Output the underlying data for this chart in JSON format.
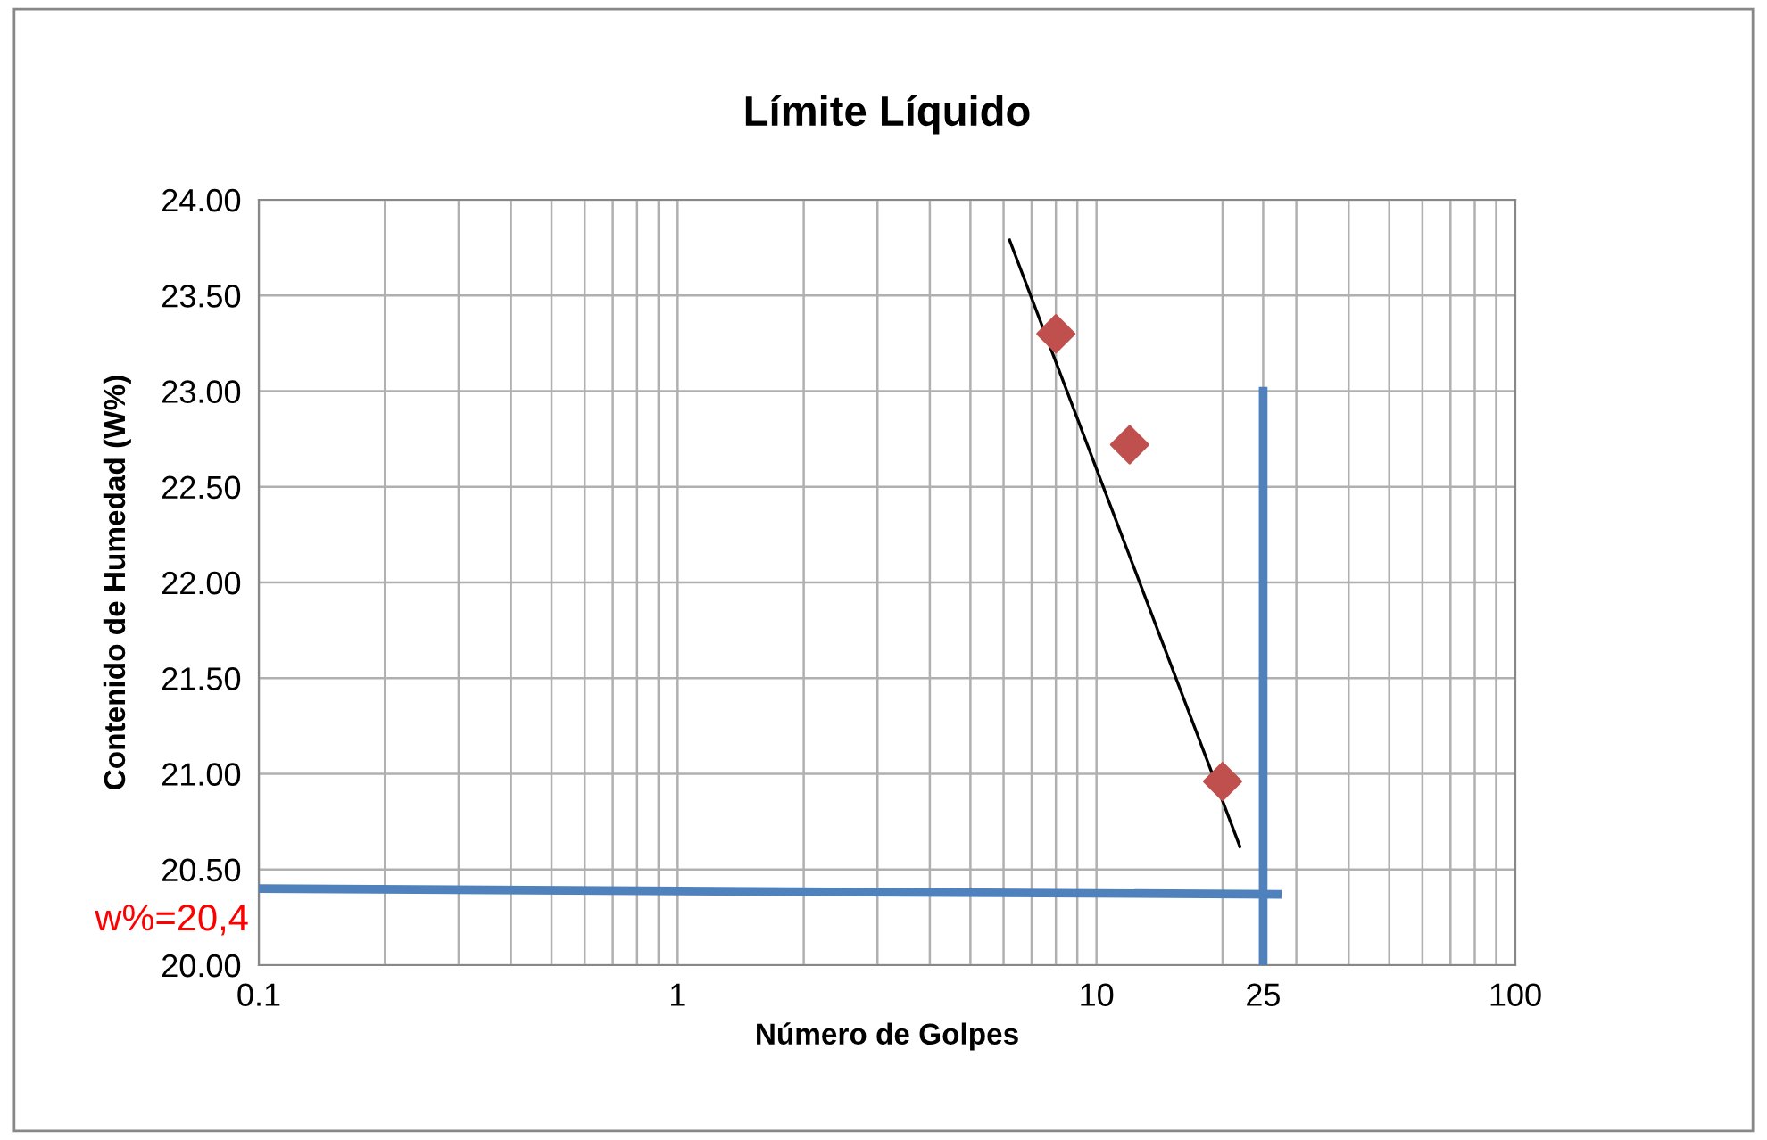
{
  "chart_data": {
    "type": "scatter",
    "title": "Límite Líquido",
    "xlabel": "Número de Golpes",
    "ylabel": "Contenido de Humedad (W%)",
    "log": "x",
    "xlim": [
      0.1,
      100
    ],
    "xticks": [
      0.1,
      1,
      10,
      25,
      100
    ],
    "ylim": [
      20,
      24
    ],
    "yticks": [
      {
        "value": 20,
        "label": "20.00"
      },
      {
        "value": 20.5,
        "label": "20.50"
      },
      {
        "value": 21,
        "label": "21.00"
      },
      {
        "value": 21.5,
        "label": "21.50"
      },
      {
        "value": 22,
        "label": "22.00"
      },
      {
        "value": 22.5,
        "label": "22.50"
      },
      {
        "value": 23,
        "label": "23.00"
      },
      {
        "value": 23.5,
        "label": "23.50"
      },
      {
        "value": 24,
        "label": "24.00"
      }
    ],
    "grid": true,
    "legend": false,
    "series": [
      {
        "marker": "diamond",
        "color": "#c0504d",
        "x": [
          8,
          12,
          20
        ],
        "values": [
          23.3,
          22.72,
          20.96
        ]
      },
      {
        "type": "line",
        "color": "#000000",
        "x": [
          6.2,
          22
        ],
        "values": [
          23.79,
          20.62
        ]
      },
      {
        "type": "line",
        "color": "#4f81bd",
        "x": [
          25,
          25
        ],
        "values": [
          20,
          23
        ]
      },
      {
        "type": "line",
        "color": "#4f81bd",
        "x": [
          0.1,
          27
        ],
        "values": [
          20.4,
          20.37
        ]
      }
    ],
    "annotations": [
      {
        "text": "w%=20,4",
        "x": 0.1,
        "y": 20.4
      }
    ]
  }
}
